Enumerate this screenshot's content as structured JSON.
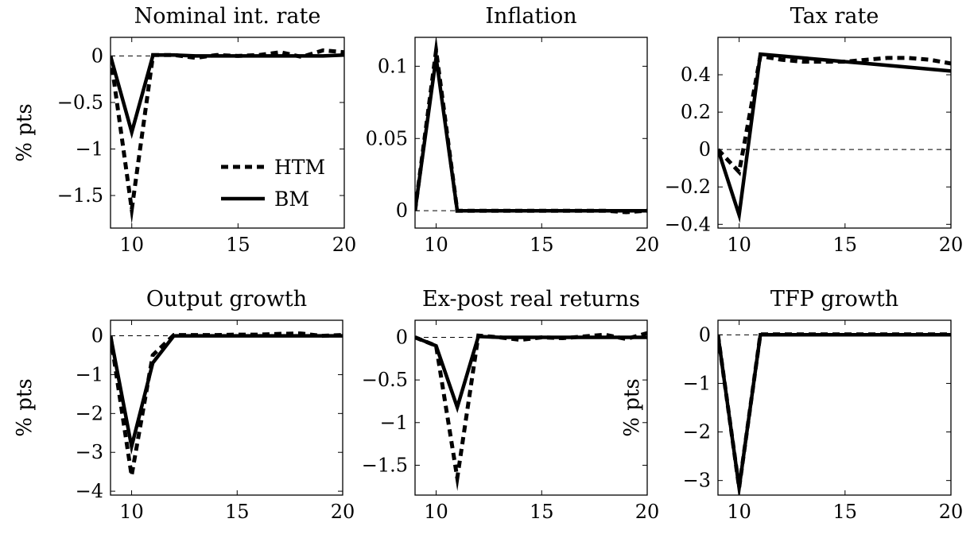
{
  "chart_data": [
    {
      "type": "line",
      "title": "Nominal int. rate",
      "ylabel": "% pts",
      "xlim": [
        9,
        20
      ],
      "ylim": [
        -1.85,
        0.2
      ],
      "xticks": [
        10,
        15,
        20
      ],
      "xtick_labels": [
        "10",
        "15",
        "20"
      ],
      "yticks": [
        0,
        -0.5,
        -1,
        -1.5
      ],
      "ytick_labels": [
        "0",
        "−0.5",
        "−1",
        "−1.5"
      ],
      "zero_line": true,
      "legend": {
        "position": "bottom-right",
        "entries": [
          "HTM",
          "BM"
        ]
      },
      "series": [
        {
          "name": "HTM",
          "style": "dashed",
          "x": [
            9,
            10,
            11,
            12,
            13,
            14,
            15,
            16,
            17,
            18,
            19,
            20
          ],
          "y": [
            0,
            -1.65,
            0.01,
            0.01,
            -0.02,
            0.01,
            0,
            0.01,
            0.04,
            -0.01,
            0.06,
            0.04
          ]
        },
        {
          "name": "BM",
          "style": "solid",
          "x": [
            9,
            10,
            11,
            12,
            13,
            14,
            15,
            16,
            17,
            18,
            19,
            20
          ],
          "y": [
            0,
            -0.82,
            0.01,
            0.01,
            0,
            0,
            0,
            0,
            0,
            0,
            0,
            0.01
          ]
        }
      ]
    },
    {
      "type": "line",
      "title": "Inflation",
      "ylabel": "",
      "xlim": [
        9,
        20
      ],
      "ylim": [
        -0.012,
        0.12
      ],
      "xticks": [
        10,
        15,
        20
      ],
      "xtick_labels": [
        "10",
        "15",
        "20"
      ],
      "yticks": [
        0,
        0.05,
        0.1
      ],
      "ytick_labels": [
        "0",
        "0.05",
        "0.1"
      ],
      "zero_line": true,
      "series": [
        {
          "name": "HTM",
          "style": "dashed",
          "x": [
            9,
            10,
            11,
            12,
            13,
            14,
            15,
            16,
            17,
            18,
            19,
            20
          ],
          "y": [
            0,
            0.111,
            0,
            0,
            0,
            0,
            0,
            0,
            0,
            0,
            -0.001,
            0
          ]
        },
        {
          "name": "BM",
          "style": "solid",
          "x": [
            9,
            10,
            11,
            12,
            13,
            14,
            15,
            16,
            17,
            18,
            19,
            20
          ],
          "y": [
            0,
            0.106,
            0,
            0,
            0,
            0,
            0,
            0,
            0,
            0,
            0,
            0
          ]
        }
      ]
    },
    {
      "type": "line",
      "title": "Tax rate",
      "ylabel": "",
      "xlim": [
        9,
        20
      ],
      "ylim": [
        -0.42,
        0.6
      ],
      "xticks": [
        10,
        15,
        20
      ],
      "xtick_labels": [
        "10",
        "15",
        "20"
      ],
      "yticks": [
        -0.4,
        -0.2,
        0,
        0.2,
        0.4
      ],
      "ytick_labels": [
        "−0.4",
        "−0.2",
        "0",
        "0.2",
        "0.4"
      ],
      "zero_line": true,
      "series": [
        {
          "name": "HTM",
          "style": "dashed",
          "x": [
            9,
            10,
            11,
            12,
            13,
            14,
            15,
            16,
            17,
            18,
            19,
            20
          ],
          "y": [
            0,
            -0.12,
            0.5,
            0.48,
            0.47,
            0.47,
            0.47,
            0.48,
            0.49,
            0.49,
            0.48,
            0.46
          ]
        },
        {
          "name": "BM",
          "style": "solid",
          "x": [
            9,
            10,
            11,
            12,
            13,
            14,
            15,
            16,
            17,
            18,
            19,
            20
          ],
          "y": [
            0,
            -0.35,
            0.51,
            0.5,
            0.49,
            0.48,
            0.47,
            0.46,
            0.45,
            0.44,
            0.43,
            0.42
          ]
        }
      ]
    },
    {
      "type": "line",
      "title": "Output growth",
      "ylabel": "% pts",
      "xlim": [
        9,
        20
      ],
      "ylim": [
        -4.1,
        0.4
      ],
      "xticks": [
        10,
        15,
        20
      ],
      "xtick_labels": [
        "10",
        "15",
        "20"
      ],
      "yticks": [
        0,
        -1,
        -2,
        -3,
        -4
      ],
      "ytick_labels": [
        "0",
        "−1",
        "−2",
        "−3",
        "−4"
      ],
      "zero_line": true,
      "series": [
        {
          "name": "HTM",
          "style": "dashed",
          "x": [
            9,
            10,
            11,
            12,
            13,
            14,
            15,
            16,
            17,
            18,
            19,
            20
          ],
          "y": [
            0,
            -3.6,
            -0.5,
            0.02,
            0.02,
            0.02,
            0.03,
            0.03,
            0.05,
            0.06,
            0,
            0.02
          ]
        },
        {
          "name": "BM",
          "style": "solid",
          "x": [
            9,
            10,
            11,
            12,
            13,
            14,
            15,
            16,
            17,
            18,
            19,
            20
          ],
          "y": [
            0,
            -2.85,
            -0.7,
            0,
            0,
            0,
            0,
            0,
            0,
            0,
            0,
            0
          ]
        }
      ]
    },
    {
      "type": "line",
      "title": "Ex-post real returns",
      "ylabel": "",
      "xlim": [
        9,
        20
      ],
      "ylim": [
        -1.85,
        0.2
      ],
      "xticks": [
        10,
        15,
        20
      ],
      "xtick_labels": [
        "10",
        "15",
        "20"
      ],
      "yticks": [
        0,
        -0.5,
        -1,
        -1.5
      ],
      "ytick_labels": [
        "0",
        "−0.5",
        "−1",
        "−1.5"
      ],
      "zero_line": true,
      "series": [
        {
          "name": "HTM",
          "style": "dashed",
          "x": [
            9,
            10,
            11,
            12,
            13,
            14,
            15,
            16,
            17,
            18,
            19,
            20
          ],
          "y": [
            0,
            -0.1,
            -1.65,
            0.02,
            0,
            -0.03,
            0,
            -0.01,
            0.01,
            0.03,
            -0.02,
            0.05
          ]
        },
        {
          "name": "BM",
          "style": "solid",
          "x": [
            9,
            10,
            11,
            12,
            13,
            14,
            15,
            16,
            17,
            18,
            19,
            20
          ],
          "y": [
            0,
            -0.1,
            -0.82,
            0.01,
            0,
            0,
            0,
            0,
            0,
            0,
            0,
            0
          ]
        }
      ]
    },
    {
      "type": "line",
      "title": "TFP growth",
      "ylabel": "% pts",
      "xlim": [
        9,
        20
      ],
      "ylim": [
        -3.3,
        0.3
      ],
      "xticks": [
        10,
        15,
        20
      ],
      "xtick_labels": [
        "10",
        "15",
        "20"
      ],
      "yticks": [
        0,
        -1,
        -2,
        -3
      ],
      "ytick_labels": [
        "0",
        "−1",
        "−2",
        "−3"
      ],
      "zero_line": true,
      "series": [
        {
          "name": "HTM",
          "style": "dashed",
          "x": [
            9,
            10,
            11,
            12,
            13,
            14,
            15,
            16,
            17,
            18,
            19,
            20
          ],
          "y": [
            0,
            -3.15,
            0.01,
            0.01,
            0.01,
            0.01,
            0.01,
            0.01,
            0.01,
            0.01,
            0.01,
            0.01
          ]
        },
        {
          "name": "BM",
          "style": "solid",
          "x": [
            9,
            10,
            11,
            12,
            13,
            14,
            15,
            16,
            17,
            18,
            19,
            20
          ],
          "y": [
            0,
            -3.15,
            0,
            0,
            0,
            0,
            0,
            0,
            0,
            0,
            0,
            0
          ]
        }
      ]
    }
  ],
  "colors": {
    "line": "#000000",
    "zero_line": "#000000",
    "background": "#ffffff"
  }
}
